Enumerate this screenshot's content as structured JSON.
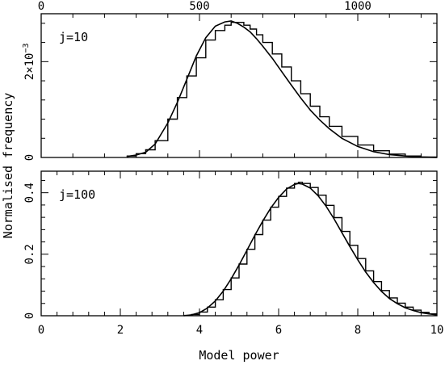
{
  "chart_data": {
    "type": "line",
    "ylabel": "Normalised frequency",
    "xlabel": "Model power",
    "panels": [
      {
        "label": "j=10",
        "xlim": [
          0,
          1250
        ],
        "ylim": [
          0,
          0.003
        ],
        "x_ticks_major": [
          0,
          500,
          1000
        ],
        "x_tick_labels": [
          "0",
          "500",
          "1000"
        ],
        "y_ticks_major": [
          0,
          0.002
        ],
        "y_tick_labels": [
          "0",
          "2×10"
        ],
        "y_tick_exponent": "−3",
        "series": [
          {
            "style": "solid",
            "x": [
              270,
              300,
              330,
              360,
              400,
              430,
              460,
              490,
              520,
              550,
              580,
              600,
              620,
              640,
              660,
              680,
              700,
              730,
              760,
              790,
              820,
              850,
              880,
              910,
              950,
              1000,
              1050,
              1100,
              1150,
              1200,
              1250
            ],
            "y": [
              2e-05,
              5e-05,
              0.00011,
              0.00028,
              0.00072,
              0.00115,
              0.00163,
              0.00212,
              0.0025,
              0.00274,
              0.00283,
              0.00285,
              0.0028,
              0.00272,
              0.00262,
              0.00248,
              0.00232,
              0.00207,
              0.00179,
              0.00151,
              0.00124,
              0.00099,
              0.00078,
              0.0006,
              0.0004,
              0.00023,
              0.00012,
              6e-05,
              3e-05,
              1e-05,
              0.0
            ]
          },
          {
            "style": "histogram",
            "x": [
              270,
              300,
              330,
              360,
              400,
              430,
              460,
              490,
              520,
              550,
              580,
              600,
              620,
              640,
              660,
              680,
              700,
              730,
              760,
              790,
              820,
              850,
              880,
              910,
              950,
              1000,
              1050,
              1100,
              1150,
              1200,
              1250
            ],
            "y": [
              3e-05,
              8e-05,
              0.00016,
              0.00035,
              0.0008,
              0.00125,
              0.0017,
              0.00208,
              0.00245,
              0.00265,
              0.00276,
              0.00282,
              0.00282,
              0.00276,
              0.00268,
              0.00256,
              0.0024,
              0.00216,
              0.00189,
              0.0016,
              0.00133,
              0.00107,
              0.00085,
              0.00065,
              0.00044,
              0.00026,
              0.00014,
              7e-05,
              3e-05,
              1e-05,
              0.0
            ]
          }
        ]
      },
      {
        "label": "j=100",
        "xlim": [
          0,
          10
        ],
        "ylim": [
          0,
          0.47
        ],
        "x_ticks_major": [
          0,
          2,
          4,
          6,
          8,
          10
        ],
        "x_tick_labels": [
          "0",
          "2",
          "4",
          "6",
          "8",
          "10"
        ],
        "y_ticks_major": [
          0,
          0.2,
          0.4
        ],
        "y_tick_labels": [
          "0",
          "0.2",
          "0.4"
        ],
        "series": [
          {
            "style": "solid",
            "x": [
              3.6,
              3.8,
              4.0,
              4.2,
              4.4,
              4.6,
              4.8,
              5.0,
              5.2,
              5.4,
              5.6,
              5.8,
              6.0,
              6.2,
              6.4,
              6.5,
              6.6,
              6.8,
              7.0,
              7.2,
              7.4,
              7.6,
              7.8,
              8.0,
              8.2,
              8.4,
              8.6,
              8.8,
              9.0,
              9.2,
              9.4,
              9.6,
              9.8,
              10.0
            ],
            "y": [
              0.0,
              0.003,
              0.01,
              0.025,
              0.048,
              0.08,
              0.12,
              0.165,
              0.213,
              0.262,
              0.308,
              0.35,
              0.385,
              0.412,
              0.427,
              0.43,
              0.428,
              0.415,
              0.39,
              0.356,
              0.315,
              0.27,
              0.225,
              0.182,
              0.142,
              0.108,
              0.079,
              0.056,
              0.039,
              0.026,
              0.017,
              0.01,
              0.006,
              0.003
            ]
          },
          {
            "style": "histogram",
            "x": [
              3.6,
              3.8,
              4.0,
              4.2,
              4.4,
              4.6,
              4.8,
              5.0,
              5.2,
              5.4,
              5.6,
              5.8,
              6.0,
              6.2,
              6.4,
              6.5,
              6.6,
              6.8,
              7.0,
              7.2,
              7.4,
              7.6,
              7.8,
              8.0,
              8.2,
              8.4,
              8.6,
              8.8,
              9.0,
              9.2,
              9.4,
              9.6,
              9.8,
              10.0
            ],
            "y": [
              0.001,
              0.004,
              0.012,
              0.028,
              0.052,
              0.085,
              0.123,
              0.168,
              0.216,
              0.264,
              0.311,
              0.353,
              0.388,
              0.415,
              0.43,
              0.434,
              0.43,
              0.417,
              0.392,
              0.359,
              0.319,
              0.274,
              0.229,
              0.186,
              0.146,
              0.111,
              0.082,
              0.058,
              0.041,
              0.028,
              0.018,
              0.011,
              0.006,
              0.003
            ]
          }
        ]
      }
    ]
  }
}
